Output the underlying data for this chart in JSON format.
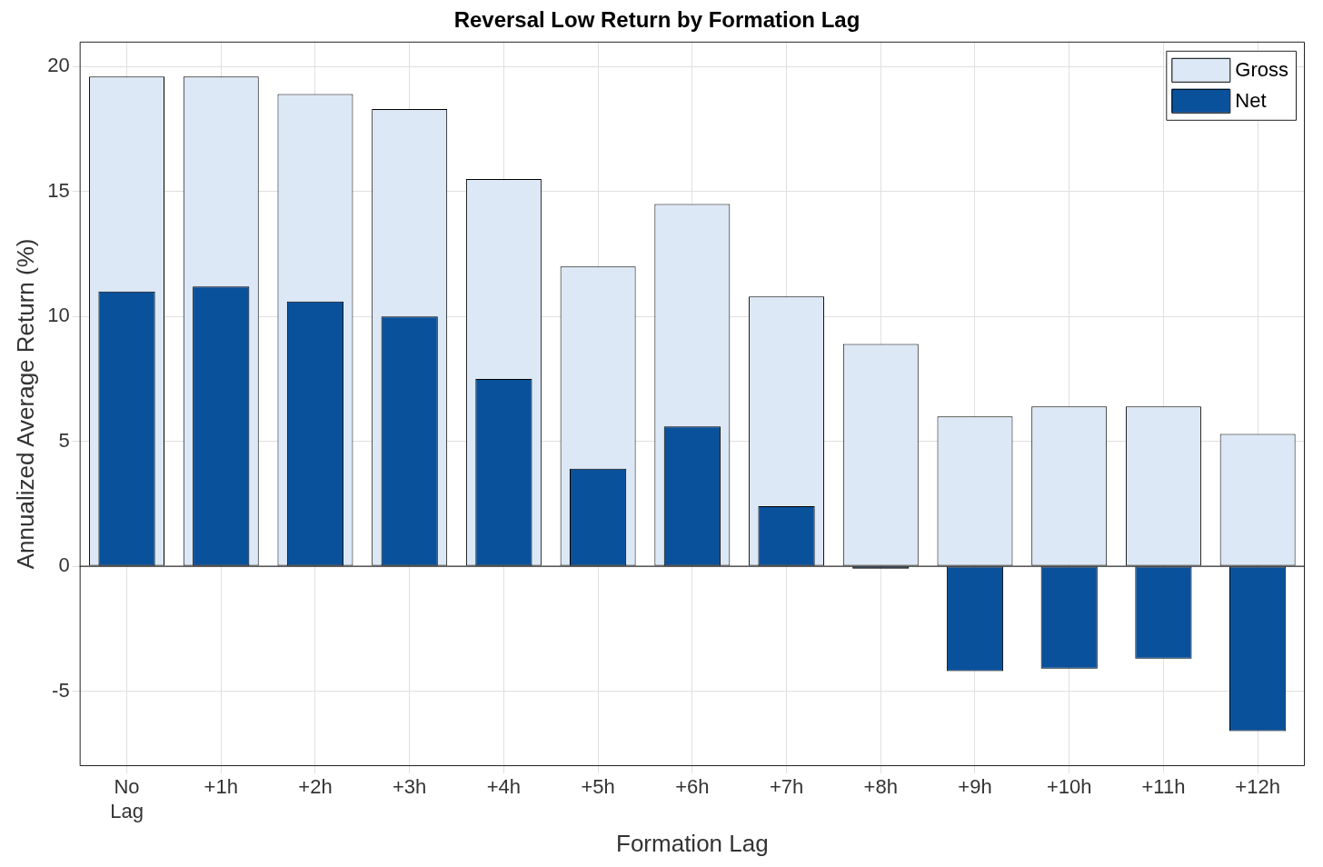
{
  "chart_data": {
    "type": "bar",
    "title": "Reversal Low Return by Formation Lag",
    "xlabel": "Formation Lag",
    "ylabel": "Annualized Average Return (%)",
    "categories": [
      "No Lag",
      "+1h",
      "+2h",
      "+3h",
      "+4h",
      "+5h",
      "+6h",
      "+7h",
      "+8h",
      "+9h",
      "+10h",
      "+11h",
      "+12h"
    ],
    "series": [
      {
        "name": "Gross",
        "color": "#dce8f5",
        "values": [
          19.6,
          19.6,
          18.9,
          18.3,
          15.5,
          12.0,
          14.5,
          10.8,
          8.9,
          6.0,
          6.4,
          6.4,
          5.3
        ]
      },
      {
        "name": "Net",
        "color": "#0a519c",
        "values": [
          11.0,
          11.2,
          10.6,
          10.0,
          7.5,
          3.9,
          5.6,
          2.4,
          -0.1,
          -4.2,
          -4.1,
          -3.7,
          -6.6
        ]
      }
    ],
    "ylim": [
      -8,
      21
    ],
    "yticks": [
      -5,
      0,
      5,
      10,
      15,
      20
    ],
    "grid": true,
    "legend": "top right"
  }
}
